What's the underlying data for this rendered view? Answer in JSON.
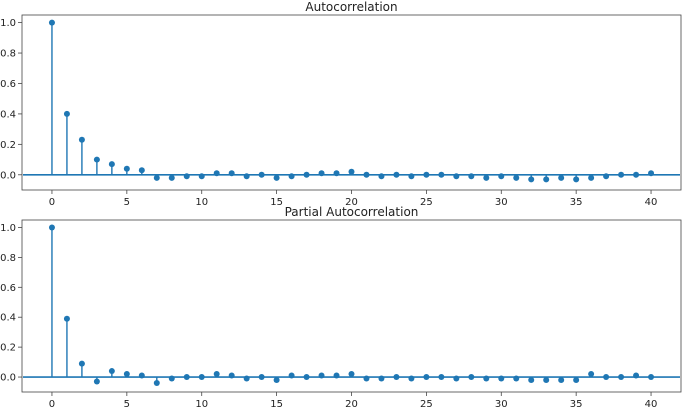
{
  "chart_data": [
    {
      "type": "stem",
      "title": "Autocorrelation",
      "xlabel": "",
      "ylabel": "",
      "xlim": [
        -2,
        42
      ],
      "ylim": [
        -0.1,
        1.05
      ],
      "xticks": [
        0,
        5,
        10,
        15,
        20,
        25,
        30,
        35,
        40
      ],
      "yticks": [
        0.0,
        0.2,
        0.4,
        0.6,
        0.8,
        1.0
      ],
      "ytick_labels": [
        "0.0",
        "0.2",
        "0.4",
        "0.6",
        "0.8",
        "1.0"
      ],
      "grid": false,
      "color": "#1f77b4",
      "lags": [
        0,
        1,
        2,
        3,
        4,
        5,
        6,
        7,
        8,
        9,
        10,
        11,
        12,
        13,
        14,
        15,
        16,
        17,
        18,
        19,
        20,
        21,
        22,
        23,
        24,
        25,
        26,
        27,
        28,
        29,
        30,
        31,
        32,
        33,
        34,
        35,
        36,
        37,
        38,
        39,
        40
      ],
      "values": [
        1.0,
        0.4,
        0.23,
        0.1,
        0.07,
        0.04,
        0.03,
        -0.02,
        -0.02,
        -0.01,
        -0.01,
        0.01,
        0.01,
        -0.01,
        0.0,
        -0.02,
        -0.01,
        0.0,
        0.01,
        0.01,
        0.02,
        0.0,
        -0.01,
        0.0,
        -0.01,
        0.0,
        0.0,
        -0.01,
        -0.01,
        -0.02,
        -0.01,
        -0.02,
        -0.03,
        -0.03,
        -0.02,
        -0.03,
        -0.02,
        -0.01,
        0.0,
        0.0,
        0.01
      ]
    },
    {
      "type": "stem",
      "title": "Partial Autocorrelation",
      "xlabel": "",
      "ylabel": "",
      "xlim": [
        -2,
        42
      ],
      "ylim": [
        -0.1,
        1.05
      ],
      "xticks": [
        0,
        5,
        10,
        15,
        20,
        25,
        30,
        35,
        40
      ],
      "yticks": [
        0.0,
        0.2,
        0.4,
        0.6,
        0.8,
        1.0
      ],
      "ytick_labels": [
        "0.0",
        "0.2",
        "0.4",
        "0.6",
        "0.8",
        "1.0"
      ],
      "grid": false,
      "color": "#1f77b4",
      "lags": [
        0,
        1,
        2,
        3,
        4,
        5,
        6,
        7,
        8,
        9,
        10,
        11,
        12,
        13,
        14,
        15,
        16,
        17,
        18,
        19,
        20,
        21,
        22,
        23,
        24,
        25,
        26,
        27,
        28,
        29,
        30,
        31,
        32,
        33,
        34,
        35,
        36,
        37,
        38,
        39,
        40
      ],
      "values": [
        1.0,
        0.39,
        0.09,
        -0.03,
        0.04,
        0.02,
        0.01,
        -0.04,
        -0.01,
        0.0,
        0.0,
        0.02,
        0.01,
        -0.01,
        0.0,
        -0.02,
        0.01,
        0.0,
        0.01,
        0.01,
        0.02,
        -0.01,
        -0.01,
        0.0,
        -0.01,
        0.0,
        0.0,
        -0.01,
        0.0,
        -0.01,
        -0.01,
        -0.01,
        -0.02,
        -0.02,
        -0.02,
        -0.02,
        0.02,
        0.0,
        0.0,
        0.01,
        0.0
      ]
    }
  ]
}
